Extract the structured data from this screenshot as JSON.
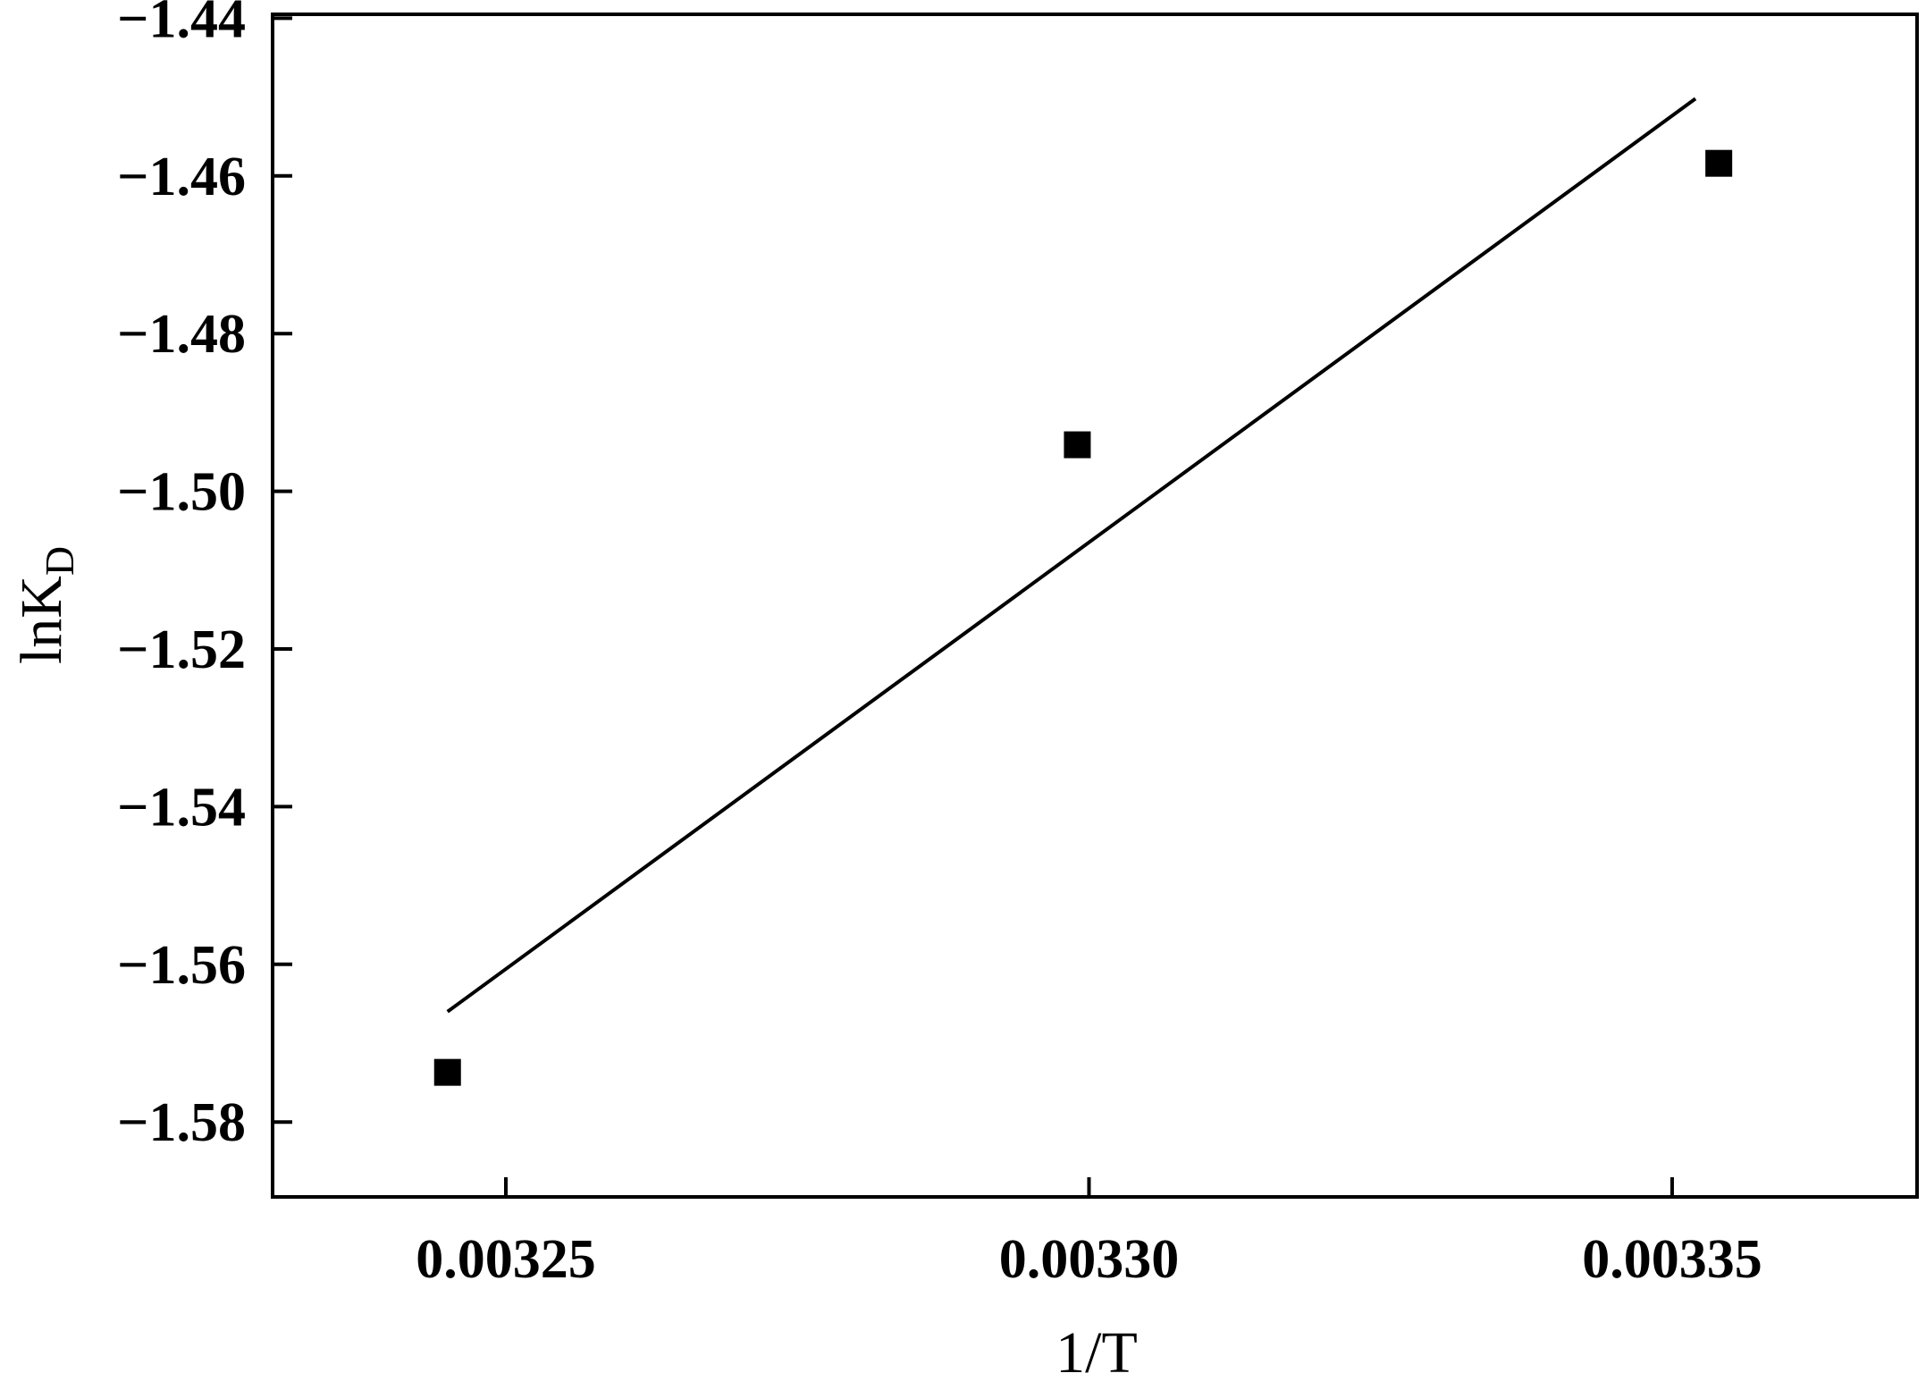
{
  "chart_data": {
    "type": "scatter",
    "title": "",
    "xlabel": "1/T",
    "ylabel_main": "lnK",
    "ylabel_sub": "D",
    "xlim": [
      0.00323,
      0.003371
    ],
    "ylim": [
      -1.5895,
      -1.4395
    ],
    "x_ticks": [
      {
        "value": 0.00325,
        "label": "0.00325"
      },
      {
        "value": 0.0033,
        "label": "0.00330"
      },
      {
        "value": 0.00335,
        "label": "0.00335"
      }
    ],
    "y_ticks": [
      {
        "value": -1.44,
        "label": "−1.44"
      },
      {
        "value": -1.46,
        "label": "−1.46"
      },
      {
        "value": -1.48,
        "label": "−1.48"
      },
      {
        "value": -1.5,
        "label": "−1.50"
      },
      {
        "value": -1.52,
        "label": "−1.52"
      },
      {
        "value": -1.54,
        "label": "−1.54"
      },
      {
        "value": -1.56,
        "label": "−1.56"
      },
      {
        "value": -1.58,
        "label": "−1.58"
      }
    ],
    "points": [
      {
        "x": 0.003245,
        "y": -1.5737
      },
      {
        "x": 0.003299,
        "y": -1.4941
      },
      {
        "x": 0.003354,
        "y": -1.4584
      }
    ],
    "fit_line": {
      "x": [
        0.003245,
        0.003352
      ],
      "y": [
        -1.566,
        -1.4502
      ]
    },
    "grid": false,
    "legend": "none",
    "marker_color": "#000000",
    "line_color": "#000000"
  }
}
